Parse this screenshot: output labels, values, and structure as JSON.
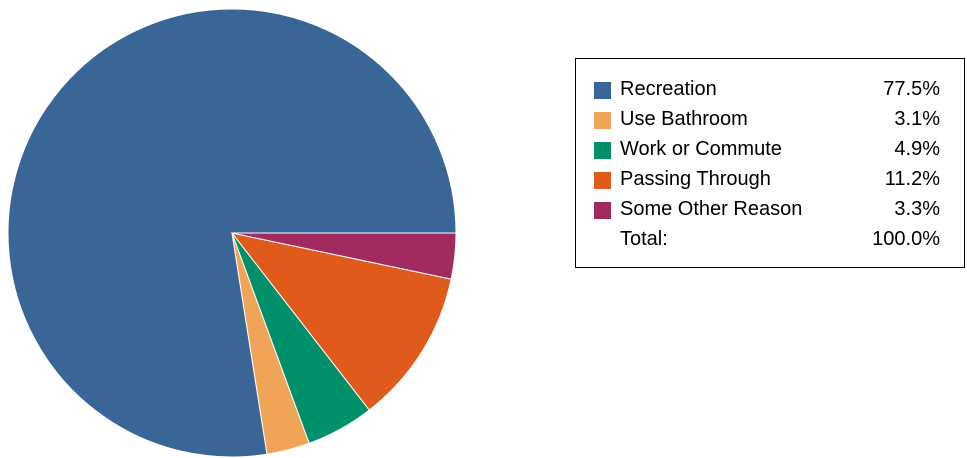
{
  "chart_data": {
    "type": "pie",
    "title": "",
    "start_angle_deg": 0,
    "direction": "counterclockwise",
    "slices": [
      {
        "label": "Recreation",
        "value": 77.5,
        "display": "77.5%",
        "color": "#3a6597"
      },
      {
        "label": "Use Bathroom",
        "value": 3.1,
        "display": "3.1%",
        "color": "#f0a458"
      },
      {
        "label": "Work or Commute",
        "value": 4.9,
        "display": "4.9%",
        "color": "#008f6b"
      },
      {
        "label": "Passing Through",
        "value": 11.2,
        "display": "11.2%",
        "color": "#e05a1c"
      },
      {
        "label": "Some Other Reason",
        "value": 3.3,
        "display": "3.3%",
        "color": "#a12b5e"
      }
    ],
    "total": {
      "label": "Total:",
      "display": "100.0%"
    },
    "legend_placement": "right"
  }
}
